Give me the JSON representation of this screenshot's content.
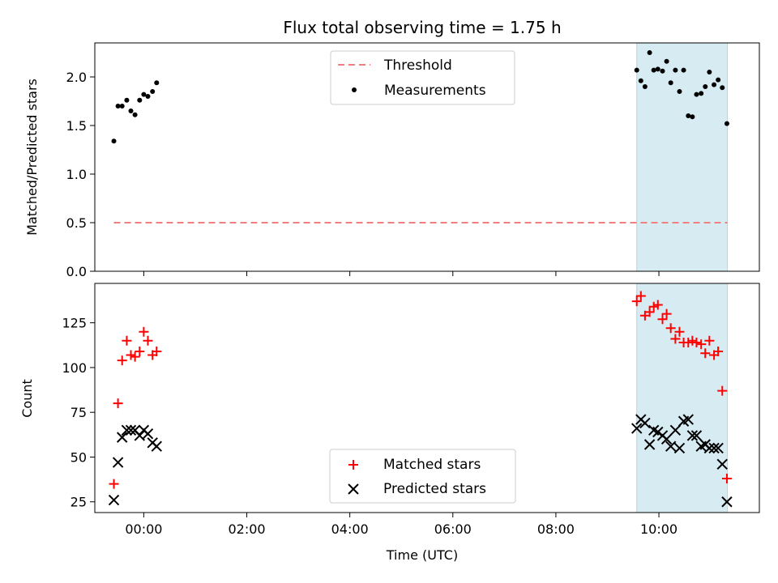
{
  "title": "Flux total observing time = 1.75 h",
  "colors": {
    "threshold": "#f08080",
    "measurement": "#000000",
    "matched": "#ff0000",
    "predicted": "#000000",
    "band": "#add8e6"
  },
  "chart_data": [
    {
      "type": "scatter",
      "ylabel": "Matched/Predicted stars",
      "xlim": [
        -0.95,
        11.95
      ],
      "ylim": [
        0,
        2.35
      ],
      "xticks": [
        0,
        2,
        4,
        6,
        8,
        10
      ],
      "yticks": [
        0,
        0.5,
        1.0,
        1.5,
        2.0
      ],
      "ytick_labels": [
        "0.0",
        "0.5",
        "1.0",
        "1.5",
        "2.0"
      ],
      "shaded_region": [
        9.57,
        11.33
      ],
      "legend_position": "top-center",
      "series": [
        {
          "name": "Threshold",
          "style": "dashed-line",
          "x": [
            -0.58,
            11.33
          ],
          "y": [
            0.5,
            0.5
          ]
        },
        {
          "name": "Measurements",
          "style": "dot",
          "x": [
            -0.58,
            -0.5,
            -0.42,
            -0.33,
            -0.25,
            -0.17,
            -0.08,
            0.0,
            0.08,
            0.17,
            0.25,
            9.57,
            9.65,
            9.73,
            9.82,
            9.9,
            9.98,
            10.07,
            10.15,
            10.23,
            10.32,
            10.4,
            10.48,
            10.57,
            10.65,
            10.73,
            10.82,
            10.9,
            10.98,
            11.07,
            11.15,
            11.23,
            11.32
          ],
          "y": [
            1.34,
            1.7,
            1.7,
            1.76,
            1.65,
            1.61,
            1.76,
            1.82,
            1.8,
            1.85,
            1.94,
            2.07,
            1.96,
            1.9,
            2.25,
            2.07,
            2.08,
            2.06,
            2.16,
            1.94,
            2.07,
            1.85,
            2.07,
            1.6,
            1.59,
            1.82,
            1.83,
            1.9,
            2.05,
            1.92,
            1.97,
            1.89,
            1.52
          ]
        }
      ]
    },
    {
      "type": "scatter",
      "xlabel": "Time (UTC)",
      "ylabel": "Count",
      "xlim": [
        -0.95,
        11.95
      ],
      "ylim": [
        19,
        147
      ],
      "xticks": [
        0,
        2,
        4,
        6,
        8,
        10
      ],
      "xtick_labels": [
        "00:00",
        "02:00",
        "04:00",
        "06:00",
        "08:00",
        "10:00"
      ],
      "yticks": [
        25,
        50,
        75,
        100,
        125
      ],
      "ytick_labels": [
        "25",
        "50",
        "75",
        "100",
        "125"
      ],
      "shaded_region": [
        9.57,
        11.33
      ],
      "legend_position": "bottom-center",
      "series": [
        {
          "name": "Matched stars",
          "marker": "plus",
          "x": [
            -0.58,
            -0.5,
            -0.42,
            -0.33,
            -0.25,
            -0.17,
            -0.08,
            0.0,
            0.08,
            0.17,
            0.25,
            9.57,
            9.65,
            9.73,
            9.82,
            9.9,
            9.98,
            10.07,
            10.15,
            10.23,
            10.32,
            10.4,
            10.48,
            10.57,
            10.65,
            10.73,
            10.82,
            10.9,
            10.98,
            11.07,
            11.15,
            11.23,
            11.32
          ],
          "y": [
            35,
            80,
            104,
            115,
            107,
            106,
            109,
            120,
            115,
            107,
            109,
            137,
            140,
            129,
            131,
            134,
            135,
            127,
            130,
            122,
            116,
            120,
            114,
            114,
            115,
            114,
            113,
            108,
            115,
            107,
            109,
            87,
            38
          ]
        },
        {
          "name": "Predicted stars",
          "marker": "x",
          "x": [
            -0.58,
            -0.5,
            -0.42,
            -0.33,
            -0.25,
            -0.17,
            -0.08,
            0.0,
            0.08,
            0.17,
            0.25,
            9.57,
            9.65,
            9.73,
            9.82,
            9.9,
            9.98,
            10.07,
            10.15,
            10.23,
            10.32,
            10.4,
            10.48,
            10.57,
            10.65,
            10.73,
            10.82,
            10.9,
            10.98,
            11.07,
            11.15,
            11.23,
            11.32
          ],
          "y": [
            26,
            47,
            61,
            65,
            65,
            65,
            62,
            65,
            63,
            58,
            56,
            66,
            71,
            69,
            57,
            65,
            64,
            62,
            60,
            56,
            65,
            55,
            70,
            71,
            62,
            62,
            56,
            57,
            55,
            55,
            55,
            46,
            25
          ]
        }
      ]
    }
  ]
}
